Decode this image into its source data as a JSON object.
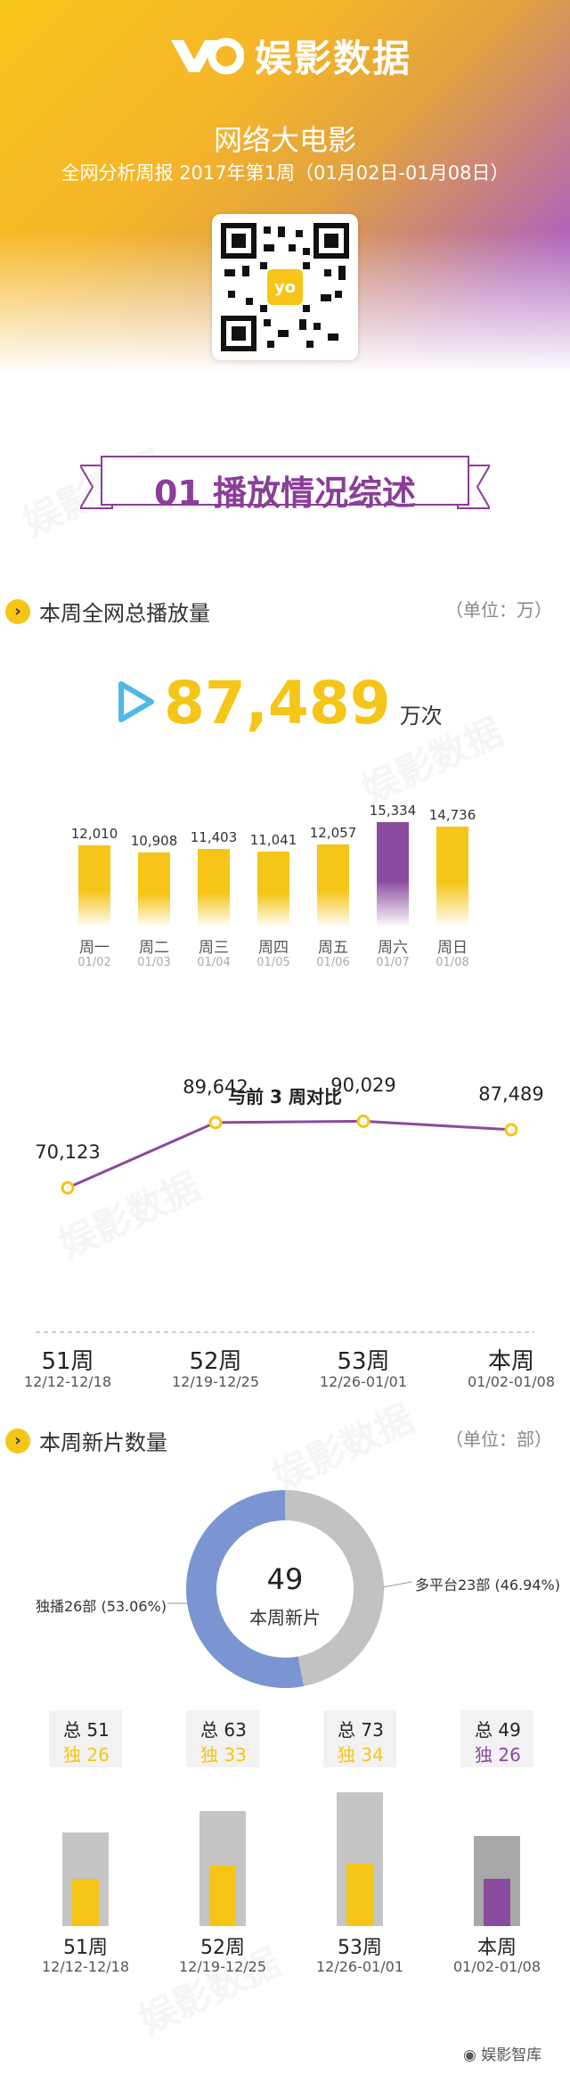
{
  "brand": {
    "name": "娱影数据"
  },
  "header": {
    "title": "网络大电影",
    "subtitle": "全网分析周报 2017年第1周（01月02日-01月08日）"
  },
  "section_banner": {
    "label": "01 播放情况综述"
  },
  "sec1": {
    "title": "本周全网总播放量",
    "unit": "（单位：万）"
  },
  "total": {
    "value": "87,489",
    "unit": "万次"
  },
  "compare": {
    "title": "与前 3 周对比"
  },
  "sec2": {
    "title": "本周新片数量",
    "unit": "（单位：部）"
  },
  "donut": {
    "center_value": "49",
    "center_label": "本周新片",
    "left_label": "独播26部 (53.06%)",
    "right_label": "多平台23部 (46.94%)"
  },
  "footer": {
    "label": "娱影智库"
  },
  "colors": {
    "yellow": "#f5c517",
    "purple": "#8a4a9e",
    "line": "#8a4a9e",
    "donut_blue": "#7a95d2",
    "donut_grey": "#c2c2c2"
  },
  "chart_data": [
    {
      "type": "bar",
      "title": "",
      "categories": [
        "周一",
        "周二",
        "周三",
        "周四",
        "周五",
        "周六",
        "周日"
      ],
      "category_dates": [
        "01/02",
        "01/03",
        "01/04",
        "01/05",
        "01/06",
        "01/07",
        "01/08"
      ],
      "value_labels": [
        "12,010",
        "10,908",
        "11,403",
        "11,041",
        "12,057",
        "15,334",
        "14,736"
      ],
      "values": [
        12010,
        10908,
        11403,
        11041,
        12057,
        15334,
        14736
      ],
      "highlight_index": 5,
      "grid": false,
      "legend": "none"
    },
    {
      "type": "line",
      "title": "与前 3 周对比",
      "categories": [
        "51周",
        "52周",
        "53周",
        "本周"
      ],
      "category_dates": [
        "12/12-12/18",
        "12/19-12/25",
        "12/26-01/01",
        "01/02-01/08"
      ],
      "value_labels": [
        "70,123",
        "89,642",
        "90,029",
        "87,489"
      ],
      "values": [
        70123,
        89642,
        90029,
        87489
      ],
      "grid": false,
      "legend": "none"
    },
    {
      "type": "pie",
      "title": "",
      "labels": [
        "独播",
        "多平台"
      ],
      "values": [
        26,
        23
      ],
      "percent": [
        53.06,
        46.94
      ],
      "center": "49 本周新片"
    },
    {
      "type": "bar",
      "title": "",
      "categories": [
        "51周",
        "52周",
        "53周",
        "本周"
      ],
      "category_dates": [
        "12/12-12/18",
        "12/19-12/25",
        "12/26-01/01",
        "01/02-01/08"
      ],
      "total_labels": [
        "总 51",
        "总 63",
        "总 73",
        "总 49"
      ],
      "exclusive_labels": [
        "独 26",
        "独 33",
        "独 34",
        "独 26"
      ],
      "series": [
        {
          "name": "总",
          "values": [
            51,
            63,
            73,
            49
          ]
        },
        {
          "name": "独",
          "values": [
            26,
            33,
            34,
            26
          ]
        }
      ],
      "highlight_index": 3,
      "grid": false,
      "legend": "none"
    }
  ]
}
